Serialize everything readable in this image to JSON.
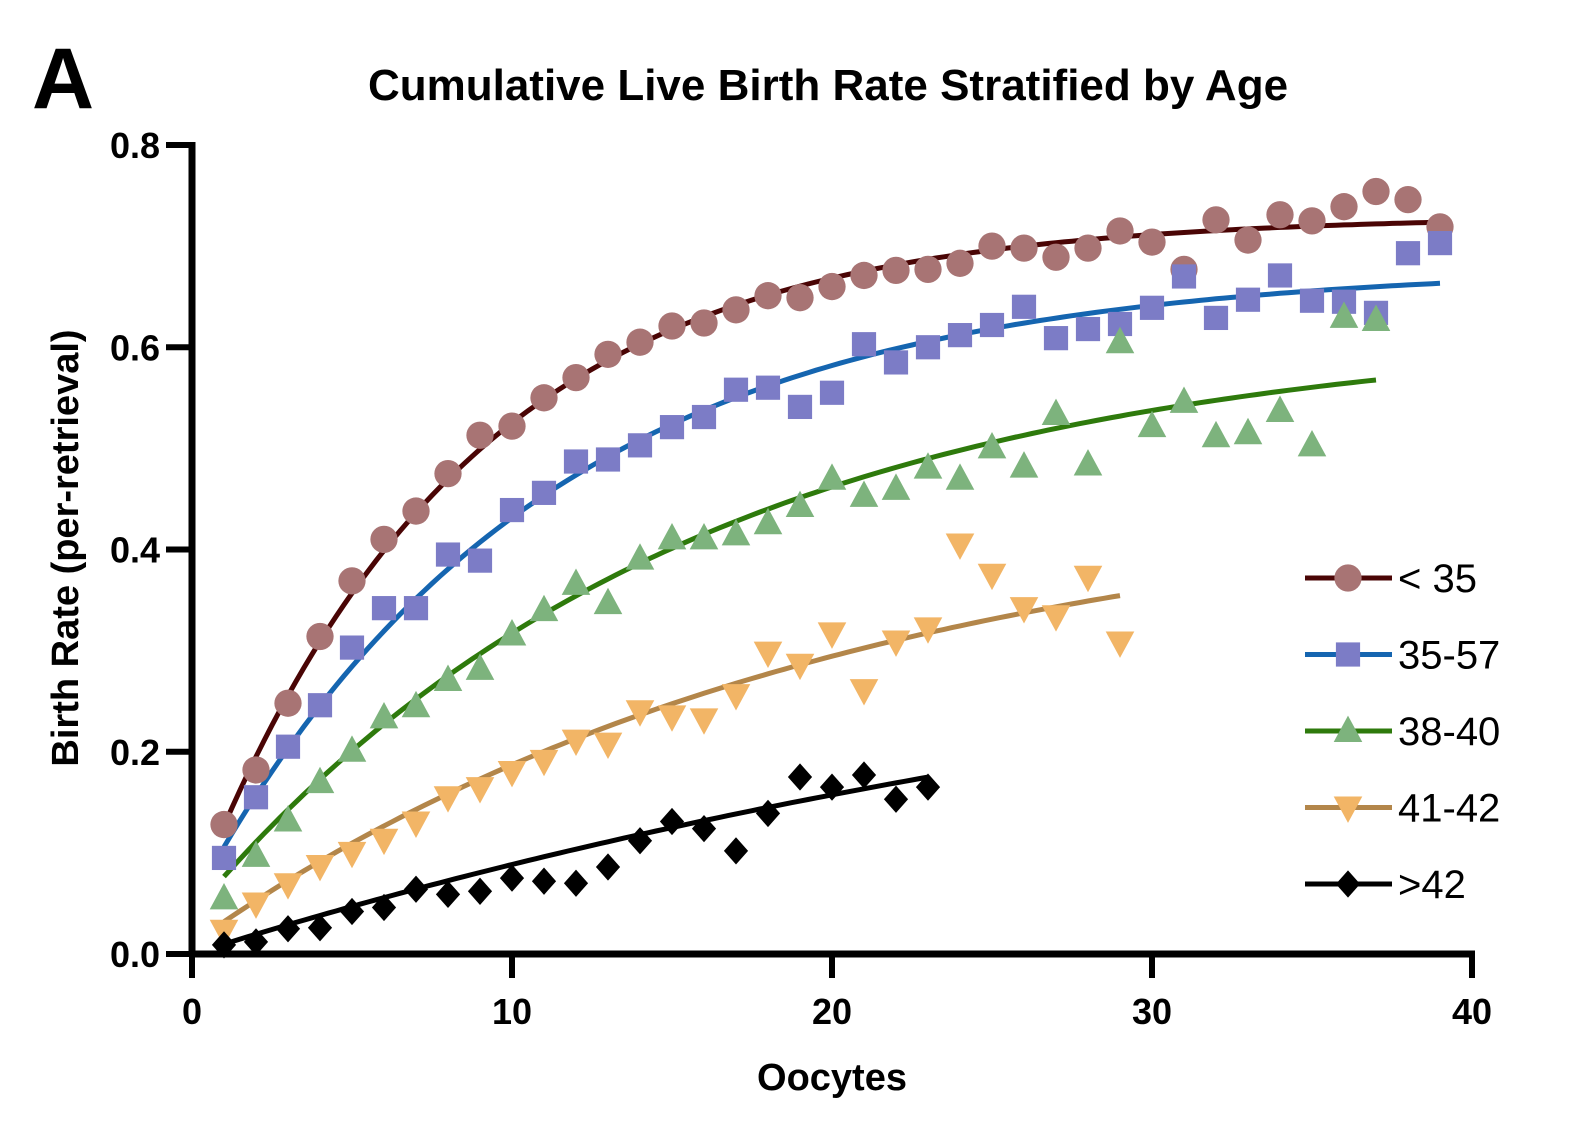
{
  "panel_label": "A",
  "chart_data": {
    "type": "scatter",
    "title": "Cumulative Live Birth Rate Stratified by Age",
    "xlabel": "Oocytes",
    "ylabel": "Birth Rate (per-retrieval)",
    "xlim": [
      0,
      40
    ],
    "ylim": [
      0,
      0.8
    ],
    "xticks": [
      "0",
      "10",
      "20",
      "30",
      "40"
    ],
    "yticks": [
      "0.0",
      "0.2",
      "0.4",
      "0.6",
      "0.8"
    ],
    "legend_position": "right",
    "fit_model": "y = y0 + (plateau - y0) * (1 - exp(-k * x))",
    "series": [
      {
        "name": "< 35",
        "marker": "circle",
        "line_color": "#4a0505",
        "marker_color": "#a87474",
        "fit": {
          "y0": 0.05,
          "plateau": 0.73,
          "k": 0.12,
          "xmax": 39
        },
        "x": [
          1,
          2,
          3,
          4,
          5,
          6,
          7,
          8,
          9,
          10,
          11,
          12,
          13,
          14,
          15,
          16,
          17,
          18,
          19,
          20,
          21,
          22,
          23,
          24,
          25,
          26,
          27,
          28,
          29,
          30,
          31,
          32,
          33,
          34,
          35,
          36,
          37,
          38,
          39
        ],
        "y": [
          0.128,
          0.182,
          0.248,
          0.314,
          0.369,
          0.41,
          0.438,
          0.475,
          0.513,
          0.522,
          0.55,
          0.57,
          0.593,
          0.605,
          0.621,
          0.624,
          0.637,
          0.651,
          0.649,
          0.66,
          0.671,
          0.676,
          0.677,
          0.683,
          0.7,
          0.698,
          0.689,
          0.698,
          0.715,
          0.704,
          0.677,
          0.726,
          0.706,
          0.731,
          0.725,
          0.739,
          0.754,
          0.746,
          0.719
        ]
      },
      {
        "name": "35-57",
        "marker": "square",
        "line_color": "#1565b0",
        "marker_color": "#7c7cc6",
        "fit": {
          "y0": 0.05,
          "plateau": 0.68,
          "k": 0.093,
          "xmax": 39
        },
        "x": [
          1,
          2,
          3,
          4,
          5,
          6,
          7,
          8,
          9,
          10,
          11,
          12,
          13,
          14,
          15,
          16,
          17,
          18,
          19,
          20,
          21,
          22,
          23,
          24,
          25,
          26,
          27,
          28,
          29,
          30,
          31,
          32,
          33,
          34,
          35,
          36,
          37,
          38,
          39
        ],
        "y": [
          0.095,
          0.155,
          0.205,
          0.246,
          0.303,
          0.342,
          0.342,
          0.395,
          0.389,
          0.439,
          0.456,
          0.487,
          0.489,
          0.503,
          0.521,
          0.531,
          0.558,
          0.56,
          0.541,
          0.555,
          0.603,
          0.585,
          0.6,
          0.612,
          0.622,
          0.64,
          0.609,
          0.618,
          0.623,
          0.639,
          0.67,
          0.629,
          0.647,
          0.671,
          0.646,
          0.645,
          0.634,
          0.693,
          0.703
        ]
      },
      {
        "name": "38-40",
        "marker": "triangle-up",
        "line_color": "#2e7a0c",
        "marker_color": "#7db37d",
        "fit": {
          "y0": 0.04,
          "plateau": 0.62,
          "k": 0.065,
          "xmax": 37
        },
        "x": [
          1,
          2,
          3,
          4,
          5,
          6,
          7,
          8,
          9,
          10,
          11,
          12,
          13,
          14,
          15,
          16,
          17,
          18,
          19,
          20,
          21,
          22,
          23,
          24,
          25,
          26,
          27,
          28,
          29,
          30,
          31,
          32,
          33,
          34,
          35,
          36,
          37
        ],
        "y": [
          0.055,
          0.097,
          0.132,
          0.17,
          0.201,
          0.234,
          0.245,
          0.271,
          0.282,
          0.316,
          0.34,
          0.366,
          0.347,
          0.391,
          0.411,
          0.411,
          0.415,
          0.426,
          0.443,
          0.47,
          0.453,
          0.46,
          0.481,
          0.47,
          0.501,
          0.482,
          0.534,
          0.484,
          0.605,
          0.522,
          0.546,
          0.512,
          0.515,
          0.537,
          0.503,
          0.63,
          0.627
        ]
      },
      {
        "name": "41-42",
        "marker": "triangle-down",
        "line_color": "#b3864a",
        "marker_color": "#f2b566",
        "fit": {
          "y0": 0.01,
          "plateau": 0.46,
          "k": 0.05,
          "xmax": 29
        },
        "x": [
          1,
          2,
          3,
          4,
          5,
          6,
          7,
          8,
          9,
          10,
          11,
          12,
          13,
          14,
          15,
          16,
          17,
          18,
          19,
          20,
          21,
          22,
          23,
          24,
          25,
          26,
          27,
          28,
          29
        ],
        "y": [
          0.023,
          0.05,
          0.069,
          0.087,
          0.1,
          0.113,
          0.13,
          0.155,
          0.164,
          0.18,
          0.191,
          0.211,
          0.208,
          0.24,
          0.235,
          0.232,
          0.256,
          0.298,
          0.286,
          0.317,
          0.261,
          0.309,
          0.322,
          0.405,
          0.375,
          0.342,
          0.334,
          0.373,
          0.308
        ]
      },
      {
        "name": ">42",
        "marker": "diamond",
        "line_color": "#000000",
        "marker_color": "#000000",
        "fit": {
          "y0": 0.0,
          "plateau": 0.4,
          "k": 0.025,
          "xmax": 23
        },
        "x": [
          1,
          2,
          3,
          4,
          5,
          6,
          7,
          8,
          9,
          10,
          11,
          12,
          13,
          14,
          15,
          16,
          17,
          18,
          19,
          20,
          21,
          22,
          23
        ],
        "y": [
          0.009,
          0.012,
          0.025,
          0.026,
          0.042,
          0.046,
          0.064,
          0.059,
          0.062,
          0.075,
          0.072,
          0.07,
          0.086,
          0.112,
          0.131,
          0.124,
          0.102,
          0.139,
          0.175,
          0.165,
          0.177,
          0.153,
          0.165
        ]
      }
    ]
  }
}
